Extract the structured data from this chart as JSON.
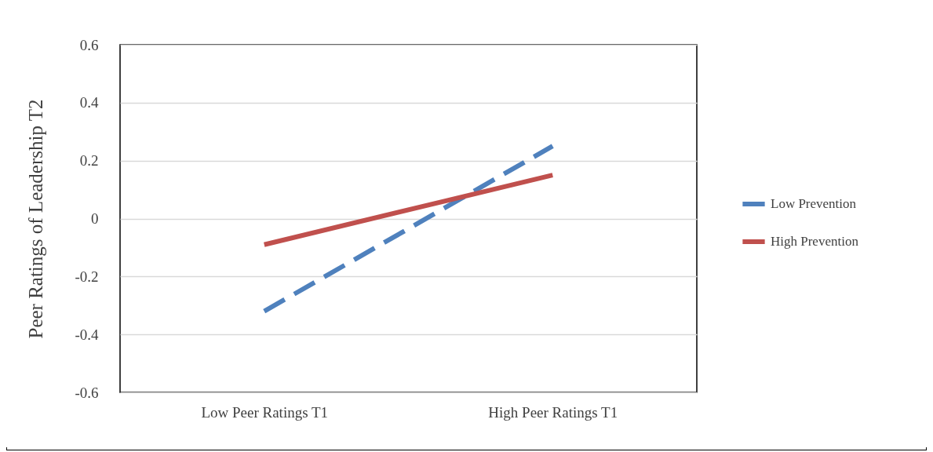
{
  "chart_data": {
    "type": "line",
    "ylabel": "Peer Ratings of Leadership  T2",
    "categories": [
      "Low Peer Ratings T1",
      "High Peer Ratings T1"
    ],
    "series": [
      {
        "name": "Low Prevention",
        "color": "#4f81bd",
        "values": [
          -0.32,
          0.25
        ],
        "line_style": "dashed"
      },
      {
        "name": "High Prevention",
        "color": "#c0504d",
        "values": [
          -0.09,
          0.15
        ],
        "line_style": "solid"
      }
    ],
    "ylim": [
      -0.6,
      0.6
    ],
    "yticks": [
      -0.6,
      -0.4,
      -0.2,
      0,
      0.2,
      0.4,
      0.6
    ],
    "grid": "y",
    "legend": "right",
    "marker": "none"
  }
}
